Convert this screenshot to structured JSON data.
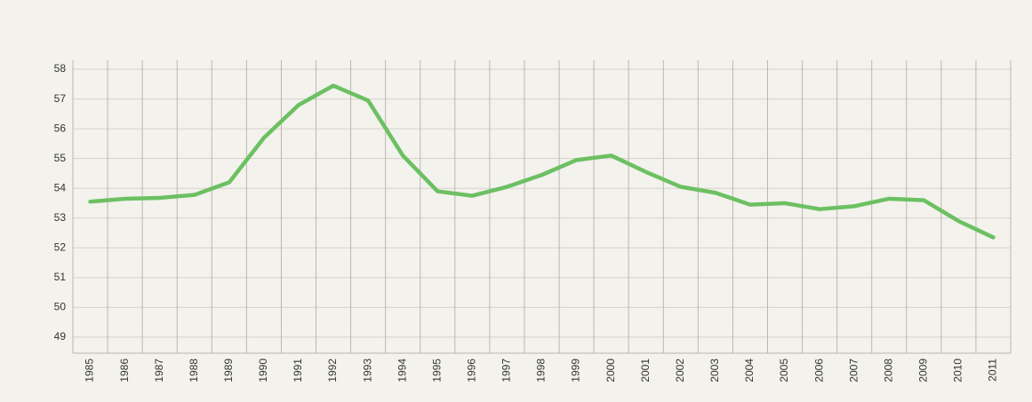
{
  "chart_data": {
    "type": "line",
    "categories": [
      "1985",
      "1986",
      "1987",
      "1988",
      "1989",
      "1990",
      "1991",
      "1992",
      "1993",
      "1994",
      "1995",
      "1996",
      "1997",
      "1998",
      "1999",
      "2000",
      "2001",
      "2002",
      "2003",
      "2004",
      "2005",
      "2006",
      "2007",
      "2008",
      "2009",
      "2010",
      "2011"
    ],
    "values": [
      53.55,
      53.65,
      53.68,
      53.78,
      54.2,
      55.7,
      56.8,
      57.45,
      56.95,
      55.1,
      53.9,
      53.75,
      54.05,
      54.45,
      54.95,
      55.1,
      54.55,
      54.05,
      53.85,
      53.45,
      53.5,
      53.3,
      53.4,
      53.65,
      53.6,
      52.9,
      52.35
    ],
    "color": "#6cc062",
    "ylim": [
      48.46,
      58.3
    ],
    "yticks": [
      49,
      50,
      51,
      52,
      53,
      54,
      55,
      56,
      57,
      58
    ],
    "grid": true
  }
}
